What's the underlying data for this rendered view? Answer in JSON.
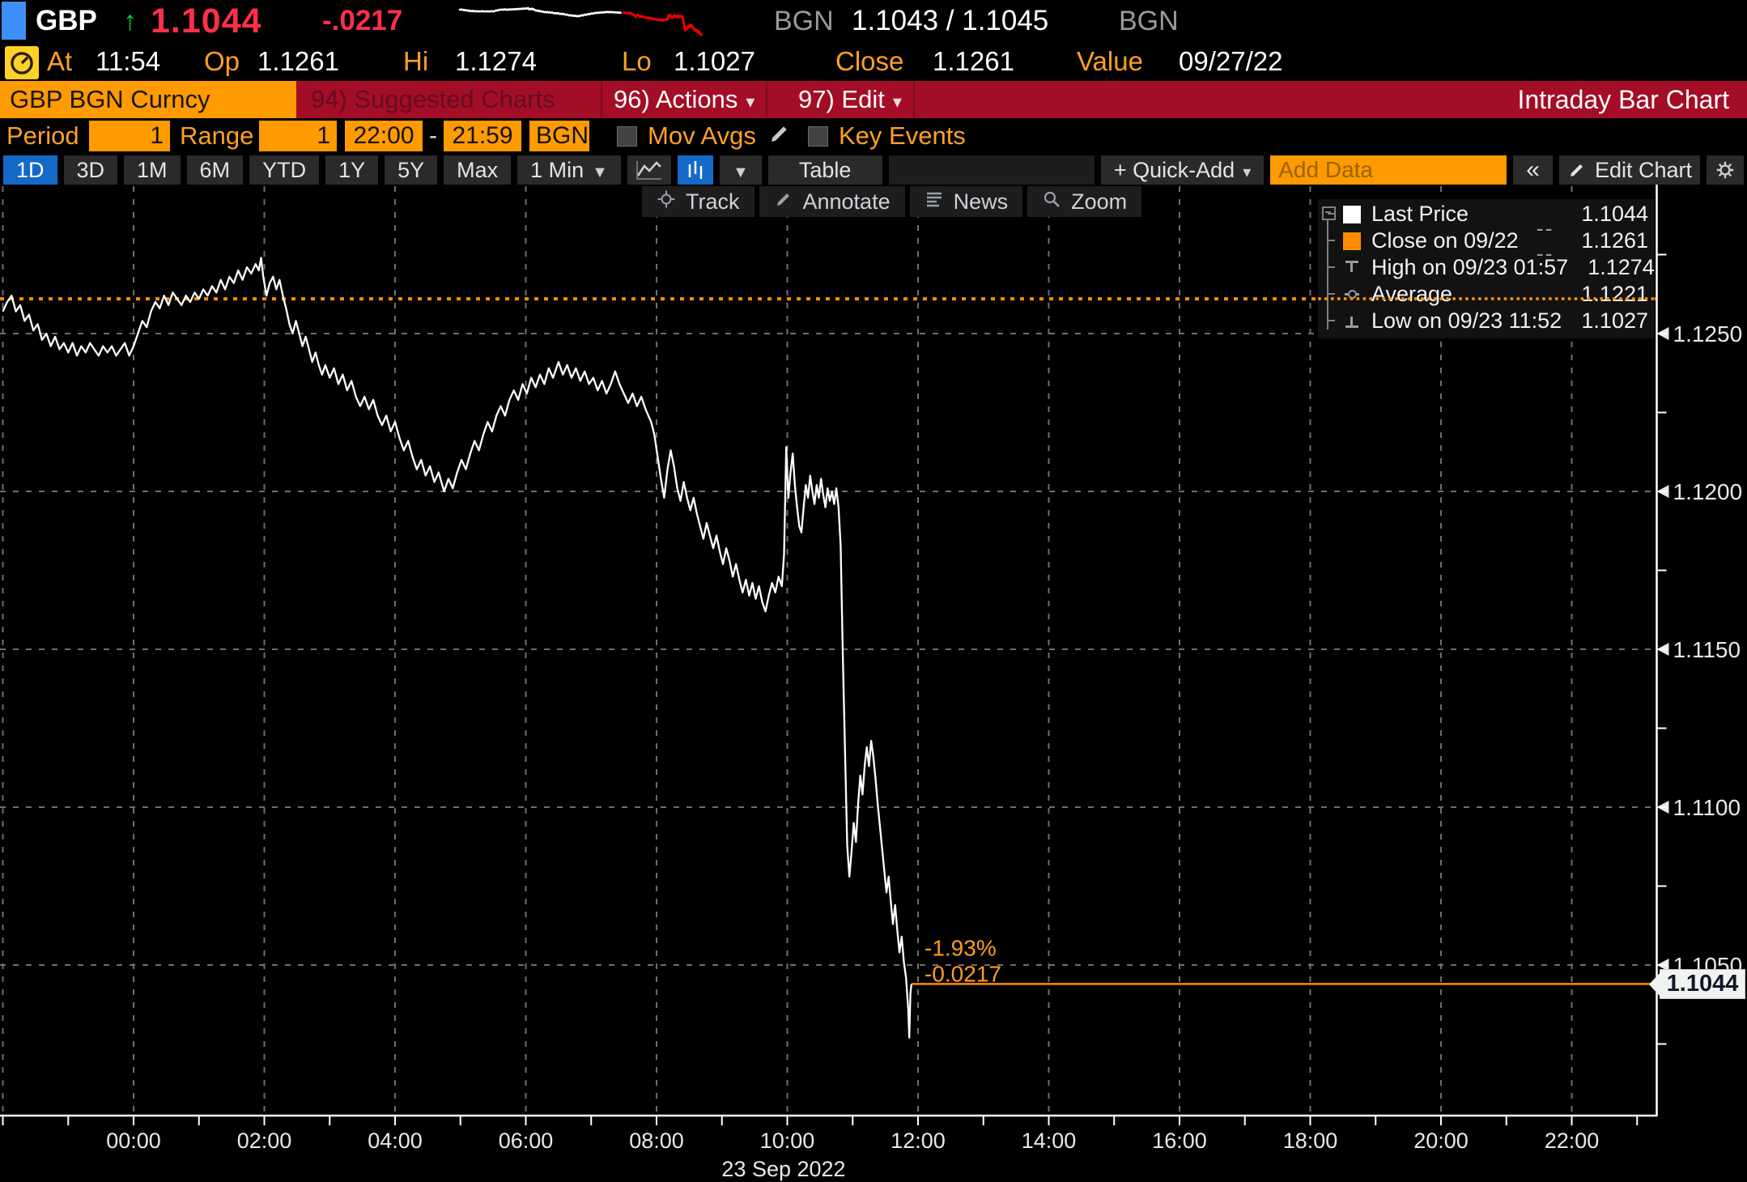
{
  "header": {
    "ticker": "GBP",
    "up_arrow": "↑",
    "last_price": "1.1044",
    "change": "-.0217",
    "source_left": "BGN",
    "bid_ask": "1.1043 / 1.1045",
    "source_right": "BGN",
    "at_label": "At",
    "at_value": "11:54",
    "open_label": "Op",
    "open_value": "1.1261",
    "high_label": "Hi",
    "high_value": "1.1274",
    "low_label": "Lo",
    "low_value": "1.1027",
    "close_label": "Close",
    "close_value": "1.1261",
    "value_label": "Value",
    "value_date": "09/27/22"
  },
  "menubar": {
    "security": "GBP BGN Curncy",
    "suggested": "94) Suggested Charts",
    "actions": "96) Actions",
    "edit": "97) Edit",
    "caret": "▾",
    "title": "Intraday Bar Chart"
  },
  "settings": {
    "period_label": "Period",
    "period_value": "1",
    "range_label": "Range",
    "range_value": "1",
    "time_from": "22:00",
    "time_separator": "-",
    "time_to": "21:59",
    "source": "BGN",
    "mov_avgs_label": "Mov Avgs",
    "key_events_label": "Key Events"
  },
  "toolbar": {
    "ranges": [
      "1D",
      "3D",
      "1M",
      "6M",
      "YTD",
      "1Y",
      "5Y",
      "Max"
    ],
    "active_range": "1D",
    "interval_label": "1 Min",
    "caret_down": "▼",
    "table_label": "Table",
    "quick_add_label": "+ Quick-Add",
    "add_data_placeholder": "Add Data",
    "collapse_label": "«",
    "edit_chart_label": "Edit Chart"
  },
  "chart_toolbar": [
    {
      "icon": "track-icon",
      "label": "Track"
    },
    {
      "icon": "annotate-icon",
      "label": "Annotate"
    },
    {
      "icon": "news-icon",
      "label": "News"
    },
    {
      "icon": "zoom-icon",
      "label": "Zoom"
    }
  ],
  "legend": {
    "rows": [
      {
        "icon": "last-price-swatch",
        "label": "Last Price",
        "value": "1.1044"
      },
      {
        "icon": "close-swatch",
        "label": "Close on 09/22",
        "suffix": "----",
        "value": "1.1261"
      },
      {
        "icon": "high-marker",
        "label": "High on 09/23 01:57",
        "value": "1.1274"
      },
      {
        "icon": "average-marker",
        "label": "Average",
        "value": "1.1221"
      },
      {
        "icon": "low-marker",
        "label": "Low on 09/23 11:52",
        "value": "1.1027"
      }
    ]
  },
  "annotations": {
    "percent_change": "-1.93%",
    "abs_change": "-0.0217"
  },
  "axis_price_tag": "1.1044",
  "colors": {
    "accent_orange": "#ff9a00",
    "line_orange": "#ff8c00",
    "price_red": "#ff2f4a",
    "up_green": "#00d13f",
    "menubar_red": "#a30d26",
    "active_blue": "#1569c7",
    "grid_gray": "#6e6e6e"
  },
  "chart_data": {
    "type": "line",
    "title": "GBP BGN Curncy intraday 1-minute line",
    "x_unit": "minutes since 22:00 (22 Sep 2022)",
    "x_tick_labels": [
      "00:00",
      "02:00",
      "04:00",
      "06:00",
      "08:00",
      "10:00",
      "12:00",
      "14:00",
      "16:00",
      "18:00",
      "20:00",
      "22:00"
    ],
    "x_date_label": "23 Sep 2022",
    "y_tick_labels": [
      "1.1250",
      "1.1200",
      "1.1150",
      "1.1100",
      "1.1050"
    ],
    "ylim": [
      1.1,
      1.1297
    ],
    "grid": true,
    "close_line": 1.1261,
    "last_price": 1.1044,
    "average": 1.1221,
    "high": {
      "time": "09/23 01:57",
      "value": 1.1274
    },
    "low": {
      "time": "09/23 11:52",
      "value": 1.1027
    },
    "series": [
      {
        "name": "GBP BGN last trade",
        "points": [
          [
            0,
            1.1257
          ],
          [
            4,
            1.126
          ],
          [
            8,
            1.1262
          ],
          [
            12,
            1.1257
          ],
          [
            16,
            1.1259
          ],
          [
            20,
            1.1254
          ],
          [
            24,
            1.1256
          ],
          [
            28,
            1.1251
          ],
          [
            32,
            1.1253
          ],
          [
            36,
            1.1248
          ],
          [
            40,
            1.125
          ],
          [
            44,
            1.1246
          ],
          [
            48,
            1.1249
          ],
          [
            52,
            1.1245
          ],
          [
            56,
            1.1247
          ],
          [
            60,
            1.1244
          ],
          [
            64,
            1.1247
          ],
          [
            68,
            1.1243
          ],
          [
            72,
            1.1246
          ],
          [
            76,
            1.1244
          ],
          [
            80,
            1.1247
          ],
          [
            84,
            1.1245
          ],
          [
            88,
            1.1243
          ],
          [
            92,
            1.1246
          ],
          [
            96,
            1.1244
          ],
          [
            100,
            1.1246
          ],
          [
            104,
            1.1243
          ],
          [
            108,
            1.1245
          ],
          [
            112,
            1.1247
          ],
          [
            116,
            1.1243
          ],
          [
            120,
            1.1246
          ],
          [
            124,
            1.125
          ],
          [
            128,
            1.1254
          ],
          [
            132,
            1.1252
          ],
          [
            136,
            1.1257
          ],
          [
            140,
            1.126
          ],
          [
            144,
            1.1258
          ],
          [
            148,
            1.1262
          ],
          [
            152,
            1.1259
          ],
          [
            156,
            1.1263
          ],
          [
            160,
            1.1261
          ],
          [
            164,
            1.1259
          ],
          [
            168,
            1.1262
          ],
          [
            172,
            1.126
          ],
          [
            176,
            1.1263
          ],
          [
            180,
            1.1261
          ],
          [
            184,
            1.1264
          ],
          [
            188,
            1.1262
          ],
          [
            192,
            1.1265
          ],
          [
            196,
            1.1263
          ],
          [
            200,
            1.1267
          ],
          [
            204,
            1.1264
          ],
          [
            208,
            1.1268
          ],
          [
            212,
            1.1266
          ],
          [
            216,
            1.127
          ],
          [
            220,
            1.1267
          ],
          [
            224,
            1.1271
          ],
          [
            228,
            1.1269
          ],
          [
            232,
            1.1272
          ],
          [
            235,
            1.127
          ],
          [
            237,
            1.1274
          ],
          [
            239,
            1.1268
          ],
          [
            242,
            1.1262
          ],
          [
            245,
            1.1266
          ],
          [
            248,
            1.1268
          ],
          [
            251,
            1.1264
          ],
          [
            254,
            1.1267
          ],
          [
            257,
            1.1262
          ],
          [
            260,
            1.1258
          ],
          [
            263,
            1.1253
          ],
          [
            266,
            1.125
          ],
          [
            269,
            1.1254
          ],
          [
            272,
            1.125
          ],
          [
            275,
            1.1246
          ],
          [
            278,
            1.1249
          ],
          [
            281,
            1.1245
          ],
          [
            284,
            1.1241
          ],
          [
            287,
            1.1244
          ],
          [
            290,
            1.124
          ],
          [
            293,
            1.1237
          ],
          [
            296,
            1.124
          ],
          [
            300,
            1.1236
          ],
          [
            304,
            1.1239
          ],
          [
            308,
            1.1234
          ],
          [
            312,
            1.1237
          ],
          [
            316,
            1.1232
          ],
          [
            320,
            1.1235
          ],
          [
            324,
            1.123
          ],
          [
            328,
            1.1227
          ],
          [
            332,
            1.123
          ],
          [
            336,
            1.1226
          ],
          [
            340,
            1.1229
          ],
          [
            344,
            1.1224
          ],
          [
            348,
            1.1221
          ],
          [
            352,
            1.1224
          ],
          [
            356,
            1.1219
          ],
          [
            360,
            1.1222
          ],
          [
            364,
            1.1217
          ],
          [
            368,
            1.1213
          ],
          [
            372,
            1.1216
          ],
          [
            376,
            1.1211
          ],
          [
            380,
            1.1207
          ],
          [
            384,
            1.121
          ],
          [
            388,
            1.1205
          ],
          [
            392,
            1.1208
          ],
          [
            396,
            1.1203
          ],
          [
            400,
            1.1206
          ],
          [
            405,
            1.12
          ],
          [
            409,
            1.1204
          ],
          [
            413,
            1.1201
          ],
          [
            417,
            1.1206
          ],
          [
            421,
            1.121
          ],
          [
            425,
            1.1207
          ],
          [
            429,
            1.1212
          ],
          [
            433,
            1.1216
          ],
          [
            437,
            1.1213
          ],
          [
            441,
            1.1218
          ],
          [
            445,
            1.1222
          ],
          [
            449,
            1.1219
          ],
          [
            453,
            1.1224
          ],
          [
            457,
            1.1227
          ],
          [
            461,
            1.1224
          ],
          [
            465,
            1.1229
          ],
          [
            469,
            1.1232
          ],
          [
            473,
            1.1229
          ],
          [
            477,
            1.1234
          ],
          [
            481,
            1.1231
          ],
          [
            485,
            1.1236
          ],
          [
            489,
            1.1233
          ],
          [
            493,
            1.1237
          ],
          [
            497,
            1.1234
          ],
          [
            501,
            1.1239
          ],
          [
            505,
            1.1236
          ],
          [
            510,
            1.1241
          ],
          [
            514,
            1.1237
          ],
          [
            518,
            1.124
          ],
          [
            522,
            1.1236
          ],
          [
            526,
            1.1239
          ],
          [
            530,
            1.1235
          ],
          [
            534,
            1.1238
          ],
          [
            538,
            1.1234
          ],
          [
            542,
            1.1236
          ],
          [
            546,
            1.1232
          ],
          [
            550,
            1.1235
          ],
          [
            554,
            1.1231
          ],
          [
            558,
            1.1234
          ],
          [
            562,
            1.1238
          ],
          [
            566,
            1.1234
          ],
          [
            570,
            1.1231
          ],
          [
            574,
            1.1228
          ],
          [
            578,
            1.1231
          ],
          [
            582,
            1.1227
          ],
          [
            586,
            1.123
          ],
          [
            590,
            1.1226
          ],
          [
            595,
            1.1222
          ],
          [
            598,
            1.1218
          ],
          [
            601,
            1.1211
          ],
          [
            604,
            1.1204
          ],
          [
            607,
            1.1198
          ],
          [
            610,
            1.1207
          ],
          [
            613,
            1.1213
          ],
          [
            616,
            1.1208
          ],
          [
            619,
            1.1201
          ],
          [
            622,
            1.1197
          ],
          [
            625,
            1.1203
          ],
          [
            628,
            1.1198
          ],
          [
            631,
            1.1194
          ],
          [
            634,
            1.1198
          ],
          [
            637,
            1.1193
          ],
          [
            640,
            1.1189
          ],
          [
            643,
            1.1185
          ],
          [
            646,
            1.119
          ],
          [
            649,
            1.1186
          ],
          [
            652,
            1.1182
          ],
          [
            655,
            1.1186
          ],
          [
            658,
            1.1181
          ],
          [
            661,
            1.1177
          ],
          [
            664,
            1.1182
          ],
          [
            667,
            1.1178
          ],
          [
            670,
            1.1173
          ],
          [
            673,
            1.1177
          ],
          [
            676,
            1.1172
          ],
          [
            679,
            1.1168
          ],
          [
            682,
            1.1172
          ],
          [
            685,
            1.1167
          ],
          [
            688,
            1.1171
          ],
          [
            691,
            1.1166
          ],
          [
            694,
            1.117
          ],
          [
            697,
            1.1165
          ],
          [
            700,
            1.1162
          ],
          [
            703,
            1.1167
          ],
          [
            706,
            1.1171
          ],
          [
            709,
            1.1168
          ],
          [
            712,
            1.1173
          ],
          [
            715,
            1.117
          ],
          [
            717,
            1.118
          ],
          [
            719,
            1.1214
          ],
          [
            721,
            1.1198
          ],
          [
            723,
            1.1206
          ],
          [
            725,
            1.1212
          ],
          [
            727,
            1.1202
          ],
          [
            729,
            1.1195
          ],
          [
            731,
            1.1189
          ],
          [
            733,
            1.1187
          ],
          [
            735,
            1.1195
          ],
          [
            737,
            1.1202
          ],
          [
            739,
            1.1198
          ],
          [
            741,
            1.1205
          ],
          [
            743,
            1.12
          ],
          [
            745,
            1.1196
          ],
          [
            747,
            1.1202
          ],
          [
            749,
            1.1198
          ],
          [
            751,
            1.1204
          ],
          [
            753,
            1.1199
          ],
          [
            755,
            1.1195
          ],
          [
            757,
            1.1201
          ],
          [
            759,
            1.1197
          ],
          [
            761,
            1.12
          ],
          [
            763,
            1.1196
          ],
          [
            765,
            1.1201
          ],
          [
            767,
            1.1195
          ],
          [
            769,
            1.1183
          ],
          [
            771,
            1.1148
          ],
          [
            773,
            1.1118
          ],
          [
            775,
            1.1088
          ],
          [
            777,
            1.1078
          ],
          [
            779,
            1.1086
          ],
          [
            781,
            1.1095
          ],
          [
            783,
            1.1089
          ],
          [
            785,
            1.1101
          ],
          [
            787,
            1.111
          ],
          [
            789,
            1.1104
          ],
          [
            791,
            1.1113
          ],
          [
            793,
            1.1119
          ],
          [
            795,
            1.1113
          ],
          [
            797,
            1.1121
          ],
          [
            799,
            1.1116
          ],
          [
            801,
            1.1109
          ],
          [
            803,
            1.1101
          ],
          [
            805,
            1.1094
          ],
          [
            807,
            1.1087
          ],
          [
            809,
            1.108
          ],
          [
            811,
            1.1073
          ],
          [
            813,
            1.1078
          ],
          [
            815,
            1.107
          ],
          [
            817,
            1.1063
          ],
          [
            819,
            1.1069
          ],
          [
            821,
            1.1061
          ],
          [
            823,
            1.1054
          ],
          [
            825,
            1.1059
          ],
          [
            827,
            1.1051
          ],
          [
            829,
            1.1046
          ],
          [
            831,
            1.1036
          ],
          [
            832,
            1.1027
          ],
          [
            833,
            1.1041
          ],
          [
            834,
            1.1044
          ]
        ]
      }
    ]
  }
}
